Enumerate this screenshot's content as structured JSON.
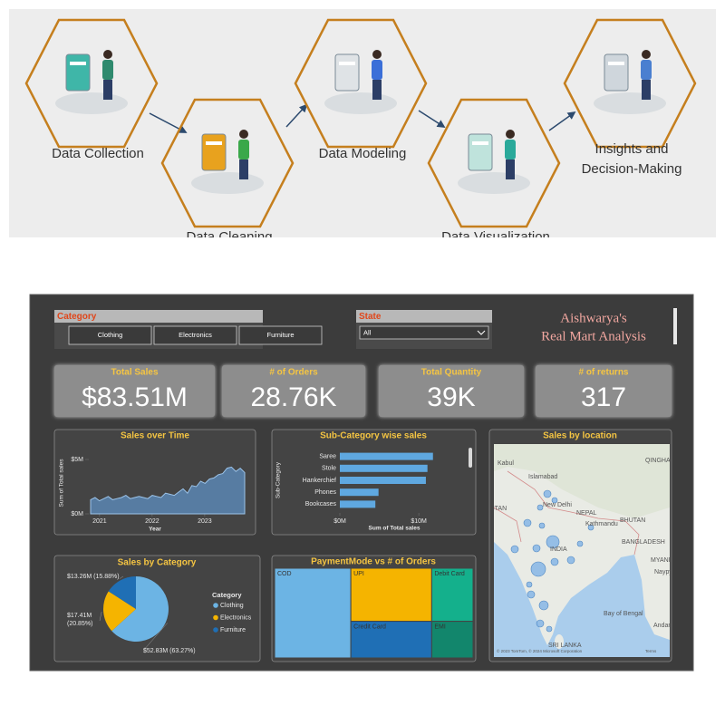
{
  "infographic": {
    "steps": [
      {
        "lines": [
          "Data Collection"
        ]
      },
      {
        "lines": [
          "Data Cleaning"
        ]
      },
      {
        "lines": [
          "Data Modeling"
        ]
      },
      {
        "lines": [
          "Data Visualization"
        ]
      },
      {
        "lines": [
          "Insights and",
          "Decision-Making"
        ]
      }
    ]
  },
  "dashboard": {
    "title_lines": [
      "Aishwarya's",
      "Real Mart Analysis"
    ],
    "category_slicer": {
      "title": "Category",
      "options": [
        "Clothing",
        "Electronics",
        "Furniture"
      ]
    },
    "state_slicer": {
      "title": "State",
      "selected": "All"
    },
    "kpis": [
      {
        "label": "Total Sales",
        "value": "$83.51M"
      },
      {
        "label": "# of Orders",
        "value": "28.76K"
      },
      {
        "label": "Total Quantity",
        "value": "39K"
      },
      {
        "label": "# of returns",
        "value": "317"
      }
    ],
    "sales_over_time": {
      "type": "area",
      "title": "Sales over Time",
      "y_label": "Sum of Total sales",
      "x_label": "Year",
      "values": [
        1.3,
        1.5,
        1.2,
        1.4,
        1.6,
        1.3,
        1.4,
        1.5,
        1.7,
        1.4,
        1.5,
        1.6,
        1.5,
        1.4,
        1.7,
        1.6,
        1.5,
        1.9,
        1.8,
        1.7,
        2.0,
        2.3,
        1.9,
        2.6,
        2.5,
        3.0,
        2.8,
        3.2,
        3.3,
        3.6,
        3.7,
        4.2,
        4.3,
        3.9,
        4.2,
        3.8
      ],
      "color": "#5b86b3",
      "ylim": [
        0,
        6
      ],
      "yticks": [
        {
          "value": 0,
          "label": "$0M"
        },
        {
          "value": 5,
          "label": "$5M"
        }
      ],
      "xlim": [
        2020.83,
        2023.76
      ],
      "xticks": [
        2021,
        2022,
        2023
      ]
    },
    "sub_category_sales": {
      "type": "bar",
      "title": "Sub-Category wise sales",
      "y_label": "Sub-Category",
      "x_label": "Sum of Total sales",
      "categories": [
        "Saree",
        "Stole",
        "Hankerchief",
        "Phones",
        "Bookcases"
      ],
      "values": [
        11.8,
        11.1,
        10.9,
        4.9,
        4.5
      ],
      "color": "#5fa8e0",
      "xlim": [
        0,
        12.4
      ],
      "xticks": [
        {
          "value": 0,
          "label": "$0M"
        },
        {
          "value": 10,
          "label": "$10M"
        }
      ]
    },
    "sales_by_category": {
      "type": "pie",
      "title": "Sales by Category",
      "legend_title": "Category",
      "categories": [
        "Clothing",
        "Electronics",
        "Furniture"
      ],
      "values": [
        52.83,
        17.41,
        13.26
      ],
      "value_labels": [
        "$52.83M (63.27%)",
        "$17.41M (20.85%)",
        "$13.26M (15.88%)"
      ],
      "colors": [
        "#6cb4e4",
        "#f5b400",
        "#1f6fb5"
      ]
    },
    "payment_mode": {
      "type": "treemap",
      "title": "PaymentMode vs # of Orders",
      "categories": [
        "COD",
        "UPI",
        "Debit Card",
        "Credit Card",
        "EMI"
      ],
      "values": [
        11050,
        6935,
        3546,
        4783,
        2446
      ],
      "colors": [
        "#6cb4e4",
        "#f5b400",
        "#14b08c",
        "#1f6fb5",
        "#12866c"
      ]
    },
    "sales_by_location": {
      "title": "Sales by location",
      "labels": [
        "Kabul",
        "Islamabad",
        "New Delhi",
        "STAN",
        "NEPAL",
        "Kathmandu",
        "BHUTAN",
        "BANGLADESH",
        "INDIA",
        "MYANMA",
        "Naypyidaw",
        "Bay of Bengal",
        "Andaman Sea",
        "SRI LANKA",
        "QINGHAI"
      ],
      "attribution": "© 2023 TomTom, © 2024 Microsoft Corporation",
      "terms": "Terms"
    }
  }
}
